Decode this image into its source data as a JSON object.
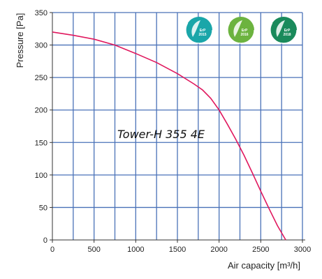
{
  "chart_data": {
    "type": "line",
    "title": "",
    "xlabel": "Air capacity [m³/h]",
    "ylabel": "Pressure [Pa]",
    "xlim": [
      0,
      3000
    ],
    "ylim": [
      0,
      350
    ],
    "x_ticks": [
      0,
      500,
      1000,
      1500,
      2000,
      2500,
      3000
    ],
    "y_ticks": [
      0,
      50,
      100,
      150,
      200,
      250,
      300,
      350
    ],
    "grid": true,
    "annotation": "Tower-H 355 4E",
    "series": [
      {
        "color": "#e0185e",
        "x": [
          0,
          250,
          500,
          750,
          1000,
          1250,
          1500,
          1700,
          1800,
          1900,
          2000,
          2100,
          2200,
          2300,
          2400,
          2500,
          2600,
          2700,
          2800
        ],
        "y": [
          320,
          315,
          309,
          300,
          287,
          273,
          256,
          240,
          231,
          218,
          200,
          178,
          155,
          130,
          103,
          75,
          48,
          22,
          0
        ]
      }
    ]
  },
  "badges": [
    {
      "name": "erp-2015-badge",
      "line1": "ErP",
      "line2": "2015",
      "color": "#1aa6a9"
    },
    {
      "name": "erp-2016-badge",
      "line1": "ErP",
      "line2": "2016",
      "color": "#6cb33f"
    },
    {
      "name": "erp-2018-badge",
      "line1": "ErP",
      "line2": "2018",
      "color": "#1a8a5b"
    }
  ],
  "colors": {
    "grid": "#4a72b8",
    "axis": "#333333",
    "curve": "#e0185e"
  }
}
